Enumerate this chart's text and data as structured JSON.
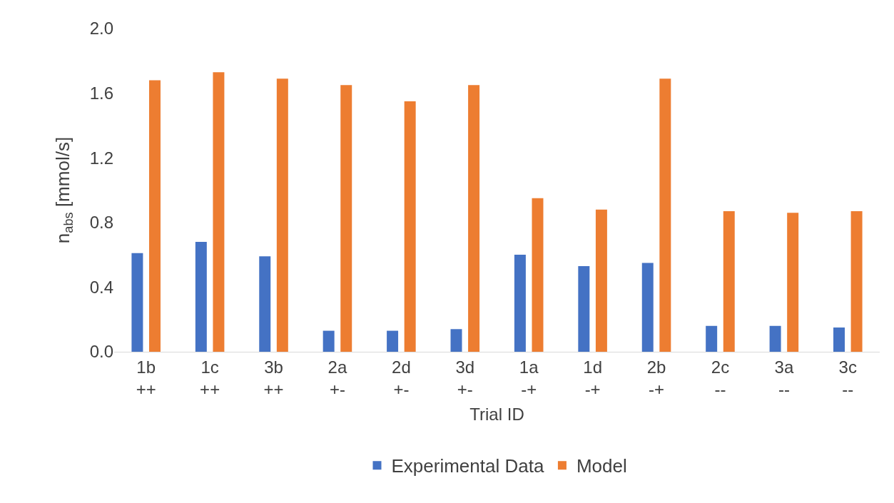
{
  "chart_data": {
    "type": "bar",
    "xlabel": "Trial ID",
    "ylabel": "n$_{abs}$ [mmol/s]",
    "categories": [
      "1b\n++",
      "1c\n++",
      "3b\n++",
      "2a\n+-",
      "2d\n+-",
      "3d\n+-",
      "1a\n-+",
      "1d\n-+",
      "2b\n-+",
      "2c\n--",
      "3a\n--",
      "3c\n--"
    ],
    "series": [
      {
        "name": "Experimental Data",
        "color": "#4472c4",
        "values": [
          0.61,
          0.68,
          0.59,
          0.13,
          0.13,
          0.14,
          0.6,
          0.53,
          0.55,
          0.16,
          0.16,
          0.15
        ]
      },
      {
        "name": "Model",
        "color": "#ed7d31",
        "values": [
          1.68,
          1.73,
          1.69,
          1.65,
          1.55,
          1.65,
          0.95,
          0.88,
          1.69,
          0.87,
          0.86,
          0.87
        ]
      }
    ],
    "ylim": [
      0,
      2
    ],
    "yticks": [
      {
        "value": 0,
        "label": "0.0"
      },
      {
        "value": 0.4,
        "label": "0.4"
      },
      {
        "value": 0.8,
        "label": "0.8"
      },
      {
        "value": 1.2,
        "label": "1.2"
      },
      {
        "value": 1.6,
        "label": "1.6"
      },
      {
        "value": 2,
        "label": "2.0"
      }
    ],
    "grid": false,
    "legend": "bottom"
  }
}
